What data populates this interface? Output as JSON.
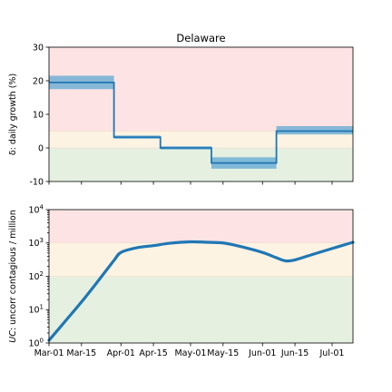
{
  "chart_data": [
    {
      "type": "line",
      "subtype": "step",
      "title": "Delaware",
      "ylabel": "δ: daily growth (%)",
      "ylim": [
        -10,
        30
      ],
      "yticks": [
        -10,
        0,
        10,
        20,
        30
      ],
      "xlim": [
        "2020-03-01",
        "2020-07-10"
      ],
      "bands": [
        {
          "from": -10,
          "to": 0,
          "color": "#e6f0e1"
        },
        {
          "from": 0,
          "to": 5,
          "color": "#fdf3e3"
        },
        {
          "from": 5,
          "to": 30,
          "color": "#fde3e3"
        }
      ],
      "line_color": "#1f77b4",
      "ci_color": "#5fa8d3",
      "segments": [
        {
          "start": "2020-03-01",
          "end": "2020-03-29",
          "value": 19.5,
          "ci": [
            17.5,
            21.5
          ]
        },
        {
          "start": "2020-03-29",
          "end": "2020-04-18",
          "value": 3.2,
          "ci": [
            2.7,
            3.7
          ]
        },
        {
          "start": "2020-04-18",
          "end": "2020-05-10",
          "value": 0.0,
          "ci": [
            -0.5,
            0.5
          ]
        },
        {
          "start": "2020-05-10",
          "end": "2020-06-07",
          "value": -4.5,
          "ci": [
            -6.2,
            -2.8
          ]
        },
        {
          "start": "2020-06-07",
          "end": "2020-07-10",
          "value": 5.0,
          "ci": [
            4.0,
            6.5
          ]
        }
      ],
      "grid": false
    },
    {
      "type": "line",
      "ylabel_italic": "UC",
      "ylabel_rest": ": uncorr contagious / million",
      "yscale": "log",
      "ylim": [
        1,
        10000
      ],
      "ytick_base": "10",
      "ytick_exponents": [
        "0",
        "1",
        "2",
        "3",
        "4"
      ],
      "xlim": [
        "2020-03-01",
        "2020-07-10"
      ],
      "xticks": [
        "2020-03-01",
        "2020-03-15",
        "2020-04-01",
        "2020-04-15",
        "2020-05-01",
        "2020-05-15",
        "2020-06-01",
        "2020-06-15",
        "2020-07-01"
      ],
      "xtick_labels": [
        "Mar-01",
        "Mar-15",
        "Apr-01",
        "Apr-15",
        "May-01",
        "May-15",
        "Jun-01",
        "Jun-15",
        "Jul-01"
      ],
      "bands": [
        {
          "from": 1,
          "to": 100,
          "color": "#e6f0e1"
        },
        {
          "from": 100,
          "to": 1000,
          "color": "#fdf3e3"
        },
        {
          "from": 1000,
          "to": 10000,
          "color": "#fde3e3"
        }
      ],
      "line_color": "#1f77b4",
      "x": [
        "2020-03-01",
        "2020-03-08",
        "2020-03-15",
        "2020-03-22",
        "2020-03-29",
        "2020-04-01",
        "2020-04-08",
        "2020-04-15",
        "2020-04-22",
        "2020-05-01",
        "2020-05-08",
        "2020-05-15",
        "2020-05-22",
        "2020-06-01",
        "2020-06-07",
        "2020-06-11",
        "2020-06-15",
        "2020-06-22",
        "2020-07-01",
        "2020-07-10"
      ],
      "y": [
        1.2,
        4.5,
        17,
        70,
        300,
        520,
        720,
        830,
        980,
        1080,
        1050,
        1000,
        800,
        520,
        360,
        290,
        310,
        440,
        680,
        1050
      ],
      "grid": false
    }
  ]
}
